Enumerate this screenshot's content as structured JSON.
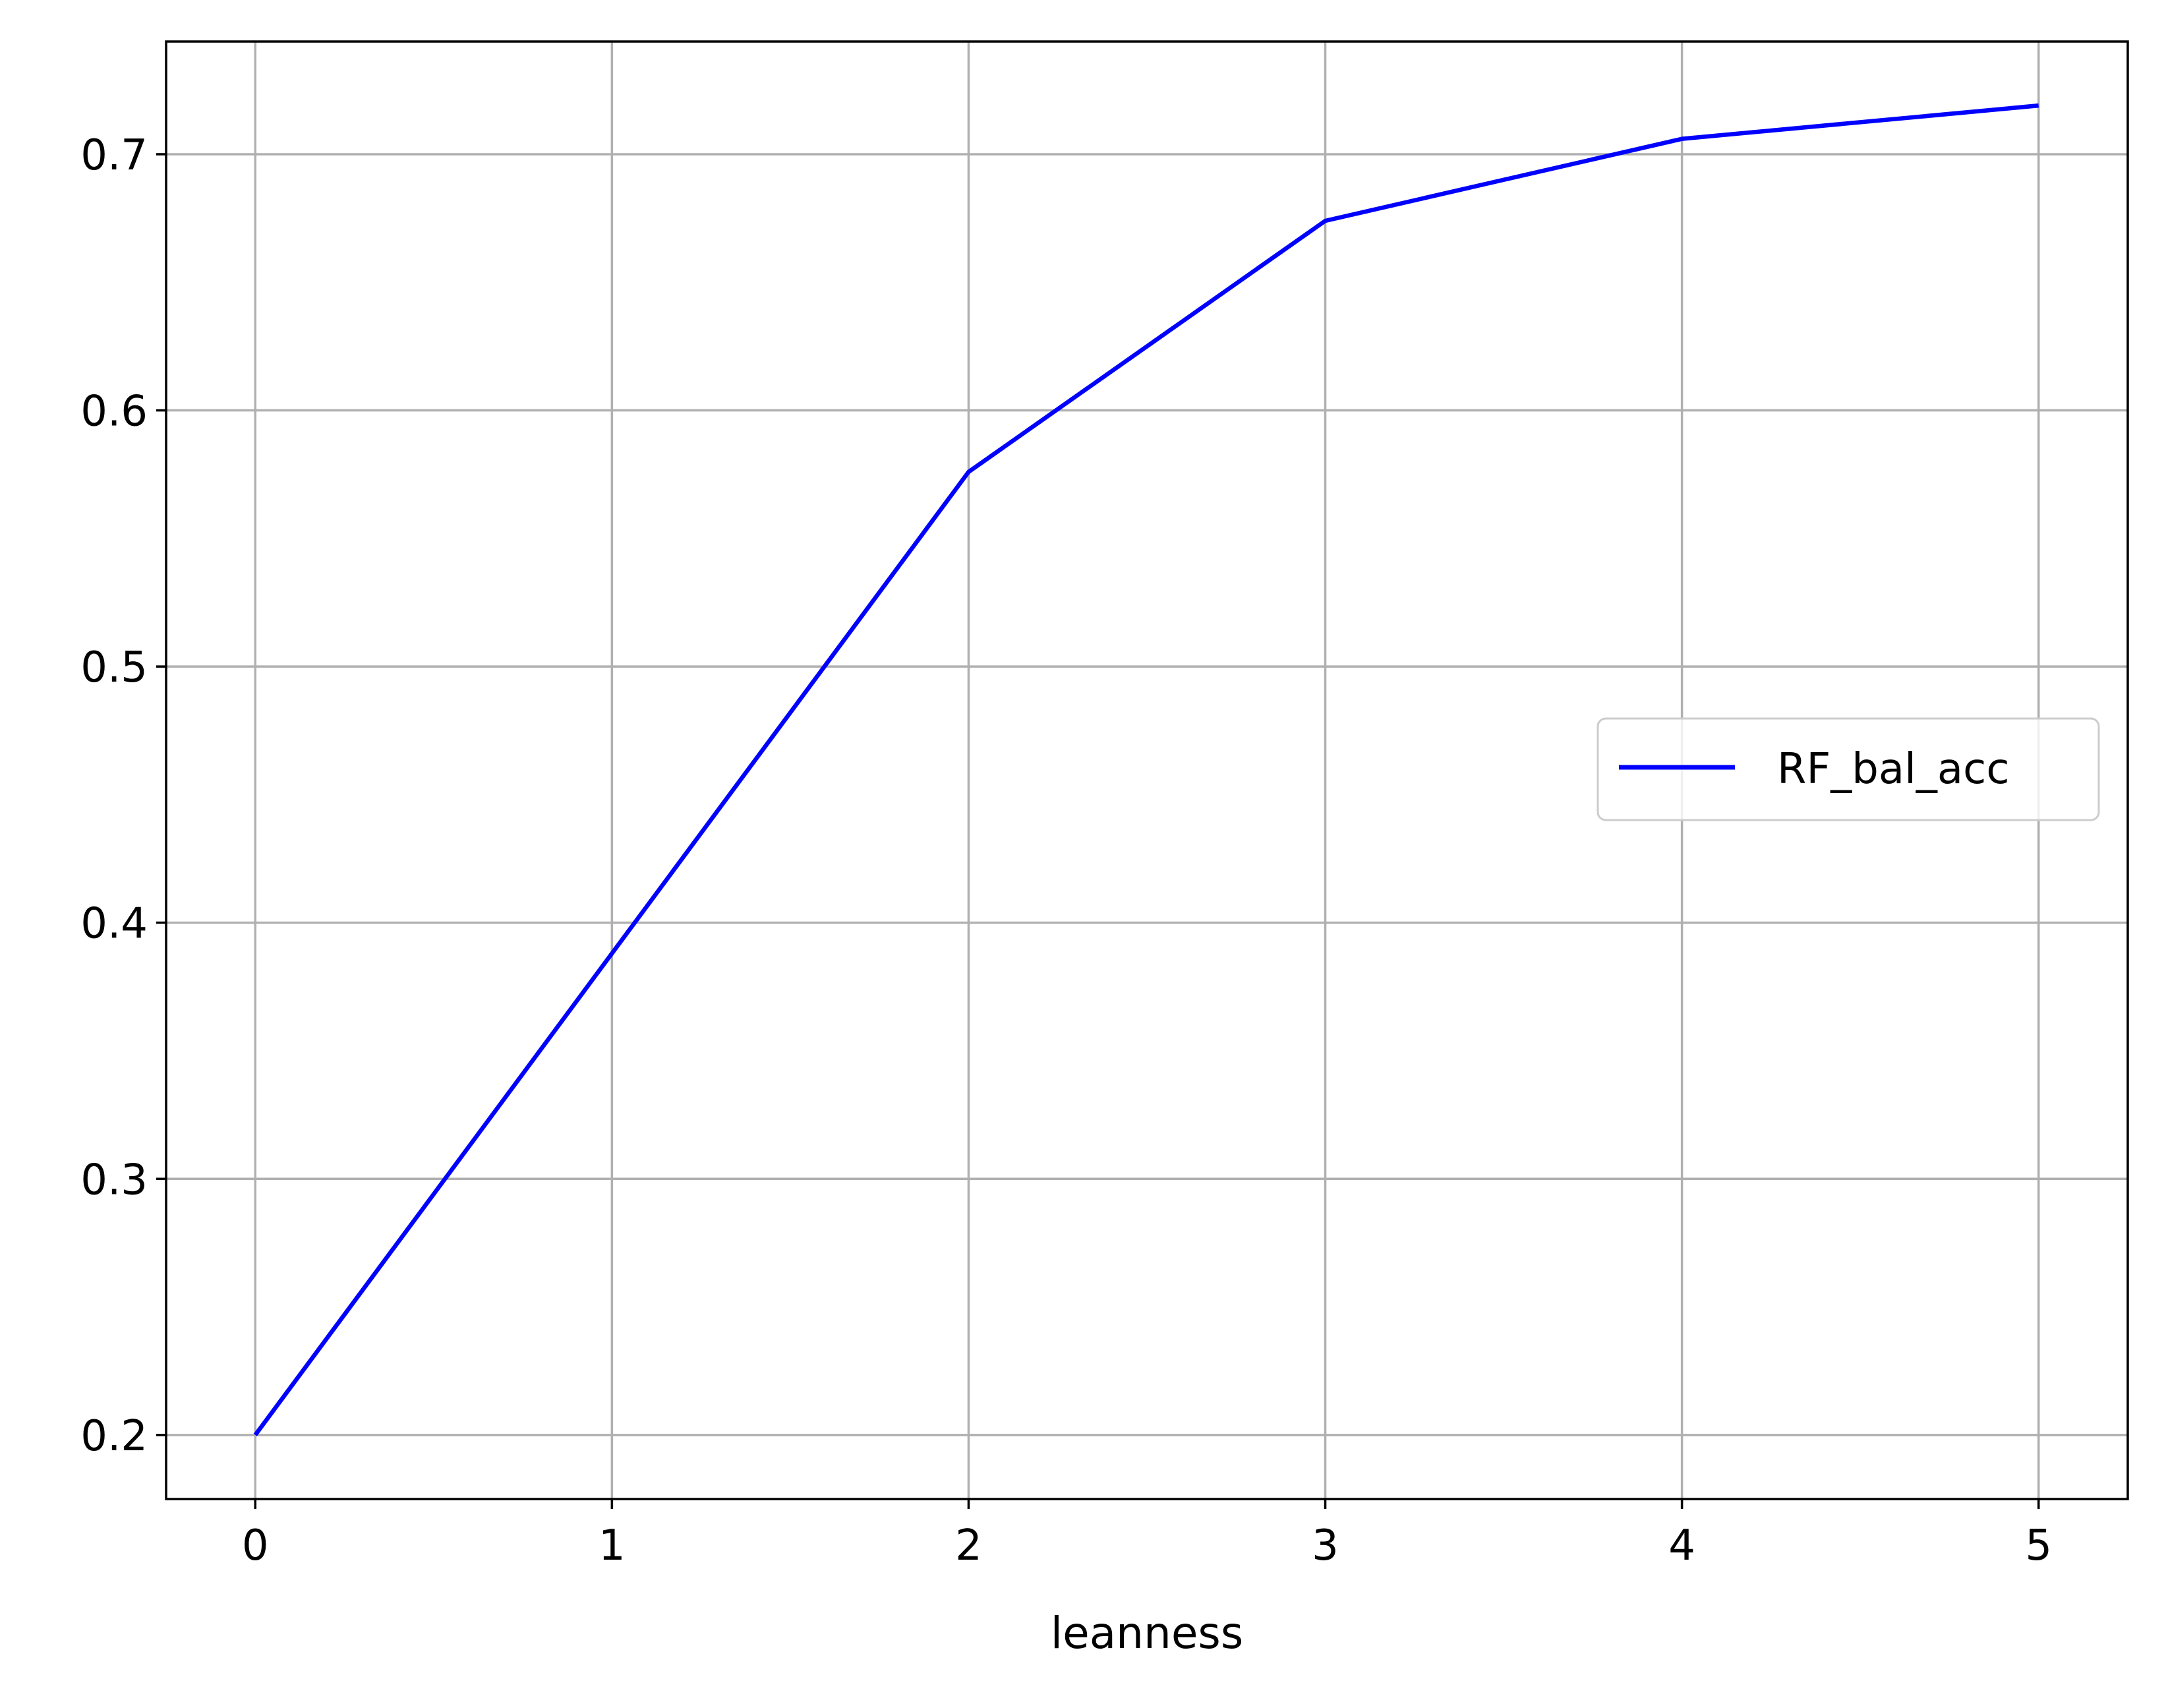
{
  "chart_data": {
    "type": "line",
    "x": [
      0,
      1,
      2,
      3,
      4,
      5
    ],
    "series": [
      {
        "name": "RF_bal_acc",
        "values": [
          0.2,
          0.388,
          0.576,
          0.674,
          0.706,
          0.719
        ],
        "color": "#0000ff"
      }
    ],
    "xlabel": "leanness",
    "ylabel": "",
    "title": "",
    "xlim": [
      -0.25,
      5.25
    ],
    "ylim": [
      0.175,
      0.744
    ],
    "xticks": [
      0,
      1,
      2,
      3,
      4,
      5
    ],
    "yticks": [
      0.2,
      0.3,
      0.4,
      0.5,
      0.6,
      0.7
    ],
    "xtick_labels": [
      "0",
      "1",
      "2",
      "3",
      "4",
      "5"
    ],
    "ytick_labels": [
      "0.2",
      "0.3",
      "0.4",
      "0.5",
      "0.6",
      "0.7"
    ],
    "grid": true,
    "grid_color": "#b0b0b0",
    "legend_position": "center-right"
  }
}
